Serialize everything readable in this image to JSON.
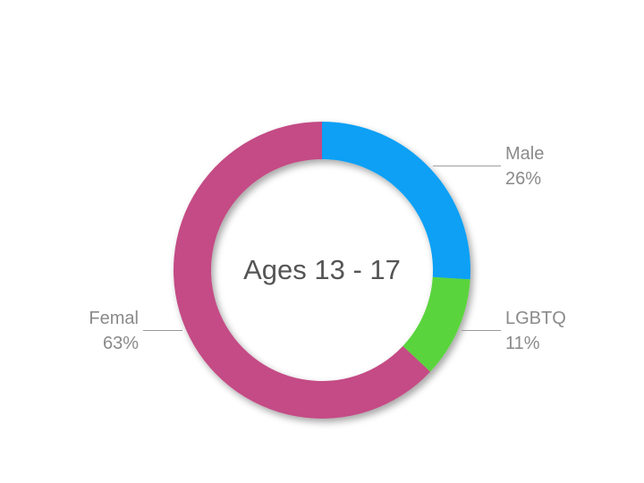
{
  "chart_data": {
    "type": "pie",
    "title": "Ages 13 - 17",
    "categories": [
      "Male",
      "LGBTQ",
      "Femal"
    ],
    "values": [
      26,
      11,
      63
    ],
    "value_labels": [
      "26%",
      "11%",
      "63%"
    ],
    "colors": [
      "#0aa0f5",
      "#5ad43c",
      "#c44b85"
    ]
  }
}
